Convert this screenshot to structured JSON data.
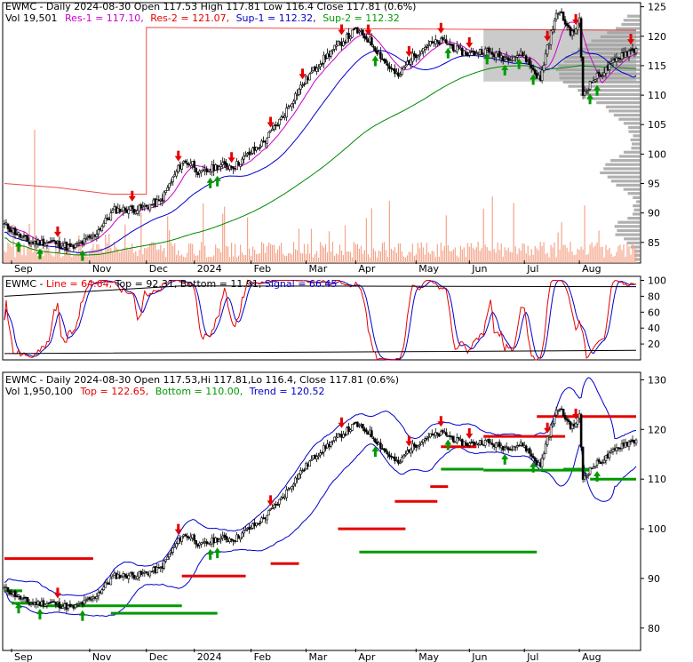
{
  "colors": {
    "price_up": "#000000",
    "ma_fast": "#cc00cc",
    "ma_mid": "#0000cc",
    "ma_slow": "#008800",
    "resistance": "#e60000",
    "support": "#009900",
    "volume": "#f4a58a",
    "profile": "#b0b0b0",
    "fill_band": "#a0a0a0"
  },
  "chart_data": [
    {
      "type": "candlestick",
      "header": {
        "symbol": "EWMC",
        "line1": "- Daily 2024-08-30 Open 117.53  High 117.81  Low 116.4  Close 117.81 (0.6%)",
        "vol": "Vol 19,501",
        "res1": "Res-1 = 117.10,",
        "res2": "Res-2 = 121.07,",
        "sup1": "Sup-1 = 112.32,",
        "sup2": "Sup-2 = 112.32"
      },
      "x_labels": [
        "Sep",
        "Nov",
        "Dec",
        "2024",
        "Feb",
        "Mar",
        "Apr",
        "May",
        "Jun",
        "Jul",
        "Aug"
      ],
      "y_ticks": [
        125,
        120,
        115,
        110,
        105,
        100,
        95,
        90,
        85
      ],
      "ylim": [
        81.5,
        125.7
      ],
      "price_path": [
        [
          0,
          88
        ],
        [
          14,
          85
        ],
        [
          28,
          85
        ],
        [
          38,
          84
        ],
        [
          50,
          86
        ],
        [
          62,
          90.5
        ],
        [
          76,
          90.7
        ],
        [
          88,
          92
        ],
        [
          100,
          98.6
        ],
        [
          106,
          98.5
        ],
        [
          110,
          96.5
        ],
        [
          120,
          98
        ],
        [
          130,
          98
        ],
        [
          146,
          102
        ],
        [
          156,
          106
        ],
        [
          166,
          111
        ],
        [
          176,
          115
        ],
        [
          188,
          118.5
        ],
        [
          198,
          121
        ],
        [
          206,
          119.3
        ],
        [
          214,
          115.8
        ],
        [
          222,
          113
        ],
        [
          228,
          116
        ],
        [
          238,
          118.5
        ],
        [
          248,
          119.2
        ],
        [
          256,
          117.5
        ],
        [
          262,
          117
        ],
        [
          270,
          117.6
        ],
        [
          282,
          116.4
        ],
        [
          292,
          117
        ],
        [
          302,
          112.5
        ],
        [
          306,
          118.4
        ],
        [
          312,
          124.4
        ],
        [
          320,
          120.3
        ],
        [
          324,
          122.7
        ],
        [
          326,
          110.2
        ],
        [
          332,
          112.7
        ],
        [
          340,
          114.5
        ],
        [
          348,
          117
        ],
        [
          356,
          117.81
        ]
      ],
      "res1": 117.1,
      "res2": 121.07,
      "sup1": 112.32,
      "sup2": 112.32
    },
    {
      "type": "line",
      "header": {
        "symbol": "EWMC",
        "line": "Line = 64.64,",
        "top": "Top = 92.31,",
        "bottom": "Bottom = 11.91,",
        "signal": "Signal = 66.45"
      },
      "y_ticks": [
        100,
        80,
        60,
        40,
        20
      ],
      "ylim": [
        0,
        105
      ]
    },
    {
      "type": "candlestick",
      "header": {
        "symbol": "EWMC",
        "line1": "- Daily 2024-08-30 Open 117.53,Hi 117.81,Lo 116.4,  Close 117.81 (0.6%)",
        "vol": "Vol 1,950,100",
        "top": "Top = 122.65,",
        "bottom": "Bottom = 110.00,",
        "trend": "Trend = 120.52"
      },
      "x_labels": [
        "Sep",
        "Nov",
        "Dec",
        "2024",
        "Feb",
        "Mar",
        "Apr",
        "May",
        "Jun",
        "Jul",
        "Aug"
      ],
      "y_ticks": [
        130,
        120,
        110,
        100,
        90,
        80
      ],
      "ylim": [
        75.5,
        131.5
      ]
    }
  ]
}
